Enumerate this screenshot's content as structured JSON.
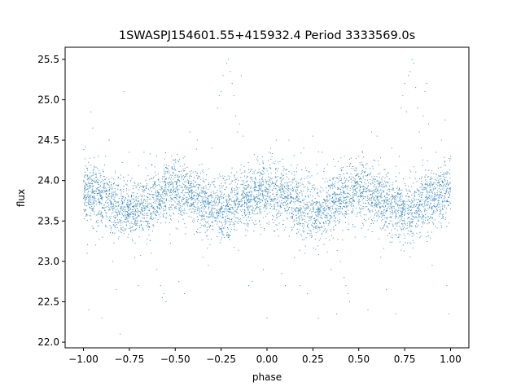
{
  "chart_data": {
    "type": "scatter",
    "title": "1SWASPJ154601.55+415932.4 Period 3333569.0s",
    "xlabel": "phase",
    "ylabel": "flux",
    "xlim": [
      -1.1,
      1.1
    ],
    "ylim": [
      21.93,
      25.65
    ],
    "x_ticks": [
      -1.0,
      -0.75,
      -0.5,
      -0.25,
      0.0,
      0.25,
      0.5,
      0.75,
      1.0
    ],
    "x_tick_labels": [
      "−1.00",
      "−0.75",
      "−0.50",
      "−0.25",
      "0.00",
      "0.25",
      "0.50",
      "0.75",
      "1.00"
    ],
    "y_ticks": [
      22.0,
      22.5,
      23.0,
      23.5,
      24.0,
      24.5,
      25.0,
      25.5
    ],
    "y_tick_labels": [
      "22.0",
      "22.5",
      "23.0",
      "23.5",
      "24.0",
      "24.5",
      "25.0",
      "25.5"
    ],
    "grid": false,
    "legend": "none",
    "series": [
      {
        "color": "#1f77b4",
        "marker": "dot",
        "phase_range": [
          -1.0,
          1.0
        ],
        "baseline_flux": 23.75,
        "typical_flux_range": [
          23.3,
          24.2
        ],
        "points": [
          [
            -0.99,
            24.42
          ],
          [
            -0.98,
            23.1
          ],
          [
            -0.97,
            22.4
          ],
          [
            -0.96,
            24.85
          ],
          [
            -0.95,
            24.65
          ],
          [
            -0.92,
            24.3
          ],
          [
            -0.9,
            22.3
          ],
          [
            -0.88,
            24.3
          ],
          [
            -0.86,
            24.5
          ],
          [
            -0.84,
            23.0
          ],
          [
            -0.82,
            22.65
          ],
          [
            -0.8,
            22.1
          ],
          [
            -0.78,
            25.1
          ],
          [
            -0.75,
            24.35
          ],
          [
            -0.72,
            23.05
          ],
          [
            -0.7,
            22.7
          ],
          [
            -0.67,
            24.35
          ],
          [
            -0.63,
            23.1
          ],
          [
            -0.6,
            22.9
          ],
          [
            -0.58,
            22.7
          ],
          [
            -0.57,
            22.55
          ],
          [
            -0.56,
            22.6
          ],
          [
            -0.55,
            22.5
          ],
          [
            -0.52,
            24.3
          ],
          [
            -0.5,
            24.25
          ],
          [
            -0.48,
            22.75
          ],
          [
            -0.45,
            22.6
          ],
          [
            -0.42,
            24.6
          ],
          [
            -0.38,
            24.5
          ],
          [
            -0.35,
            23.05
          ],
          [
            -0.32,
            22.95
          ],
          [
            -0.3,
            24.4
          ],
          [
            -0.27,
            24.9
          ],
          [
            -0.26,
            25.05
          ],
          [
            -0.25,
            25.1
          ],
          [
            -0.24,
            25.3
          ],
          [
            -0.22,
            25.45
          ],
          [
            -0.21,
            25.5
          ],
          [
            -0.2,
            25.35
          ],
          [
            -0.19,
            25.2
          ],
          [
            -0.18,
            25.05
          ],
          [
            -0.17,
            24.8
          ],
          [
            -0.16,
            24.6
          ],
          [
            -0.15,
            24.7
          ],
          [
            -0.14,
            25.3
          ],
          [
            -0.13,
            24.55
          ],
          [
            -0.1,
            22.7
          ],
          [
            -0.08,
            22.75
          ],
          [
            -0.05,
            24.3
          ],
          [
            -0.02,
            22.9
          ],
          [
            0.0,
            22.3
          ],
          [
            0.02,
            24.4
          ],
          [
            0.05,
            24.5
          ],
          [
            0.08,
            22.85
          ],
          [
            0.1,
            22.7
          ],
          [
            0.12,
            24.5
          ],
          [
            0.15,
            23.05
          ],
          [
            0.18,
            22.7
          ],
          [
            0.2,
            24.4
          ],
          [
            0.22,
            22.6
          ],
          [
            0.25,
            24.55
          ],
          [
            0.28,
            22.3
          ],
          [
            0.3,
            24.35
          ],
          [
            0.33,
            24.2
          ],
          [
            0.35,
            22.9
          ],
          [
            0.38,
            22.35
          ],
          [
            0.4,
            23.0
          ],
          [
            0.42,
            22.8
          ],
          [
            0.43,
            22.7
          ],
          [
            0.44,
            22.6
          ],
          [
            0.45,
            22.5
          ],
          [
            0.48,
            23.3
          ],
          [
            0.5,
            24.3
          ],
          [
            0.52,
            24.35
          ],
          [
            0.55,
            22.4
          ],
          [
            0.57,
            24.6
          ],
          [
            0.6,
            24.55
          ],
          [
            0.62,
            23.05
          ],
          [
            0.65,
            22.65
          ],
          [
            0.68,
            24.4
          ],
          [
            0.7,
            22.35
          ],
          [
            0.72,
            24.3
          ],
          [
            0.73,
            24.9
          ],
          [
            0.74,
            25.05
          ],
          [
            0.75,
            25.2
          ],
          [
            0.76,
            24.85
          ],
          [
            0.77,
            25.3
          ],
          [
            0.78,
            25.35
          ],
          [
            0.79,
            25.5
          ],
          [
            0.8,
            25.45
          ],
          [
            0.81,
            25.15
          ],
          [
            0.82,
            24.9
          ],
          [
            0.83,
            24.6
          ],
          [
            0.84,
            24.4
          ],
          [
            0.85,
            24.8
          ],
          [
            0.86,
            25.1
          ],
          [
            0.87,
            25.2
          ],
          [
            0.88,
            24.7
          ],
          [
            0.9,
            22.95
          ],
          [
            0.92,
            24.35
          ],
          [
            0.95,
            24.5
          ],
          [
            0.97,
            24.75
          ],
          [
            0.98,
            22.7
          ],
          [
            0.99,
            22.35
          ],
          [
            1.0,
            24.3
          ]
        ]
      }
    ]
  }
}
